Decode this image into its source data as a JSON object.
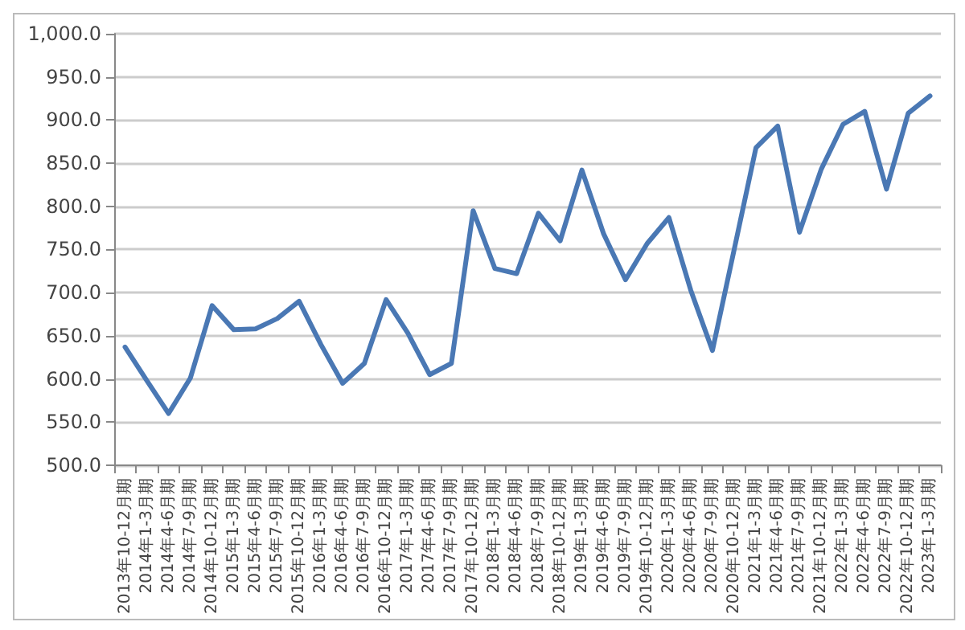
{
  "chart_data": {
    "type": "line",
    "categories": [
      "2013年10-12月期",
      "2014年1-3月期",
      "2014年4-6月期",
      "2014年7-9月期",
      "2014年10-12月期",
      "2015年1-3月期",
      "2015年4-6月期",
      "2015年7-9月期",
      "2015年10-12月期",
      "2016年1-3月期",
      "2016年4-6月期",
      "2016年7-9月期",
      "2016年10-12月期",
      "2017年1-3月期",
      "2017年4-6月期",
      "2017年7-9月期",
      "2017年10-12月期",
      "2018年1-3月期",
      "2018年4-6月期",
      "2018年7-9月期",
      "2018年10-12月期",
      "2019年1-3月期",
      "2019年4-6月期",
      "2019年7-9月期",
      "2019年10-12月期",
      "2020年1-3月期",
      "2020年4-6月期",
      "2020年7-9月期",
      "2020年10-12月期",
      "2021年1-3月期",
      "2021年4-6月期",
      "2021年7-9月期",
      "2021年10-12月期",
      "2022年1-3月期",
      "2022年4-6月期",
      "2022年7-9月期",
      "2022年10-12月期",
      "2023年1-3月期"
    ],
    "series": [
      {
        "color": "#4a78b4",
        "values": [
          637,
          598,
          560,
          601,
          685,
          657,
          658,
          670,
          690,
          640,
          595,
          618,
          692,
          653,
          605,
          618,
          795,
          728,
          722,
          792,
          760,
          842,
          768,
          715,
          757,
          787,
          703,
          633,
          750,
          868,
          893,
          770,
          843,
          895,
          910,
          820,
          908,
          928
        ]
      }
    ],
    "ylim": [
      500,
      1000
    ],
    "yticks": [
      {
        "value": 500,
        "label": "500.0"
      },
      {
        "value": 550,
        "label": "550.0"
      },
      {
        "value": 600,
        "label": "600.0"
      },
      {
        "value": 650,
        "label": "650.0"
      },
      {
        "value": 700,
        "label": "700.0"
      },
      {
        "value": 750,
        "label": "750.0"
      },
      {
        "value": 800,
        "label": "800.0"
      },
      {
        "value": 850,
        "label": "850.0"
      },
      {
        "value": 900,
        "label": "900.0"
      },
      {
        "value": 950,
        "label": "950.0"
      },
      {
        "value": 1000,
        "label": "1,000.0"
      }
    ],
    "grid": "y",
    "marker": "none",
    "line_style": "solid"
  }
}
